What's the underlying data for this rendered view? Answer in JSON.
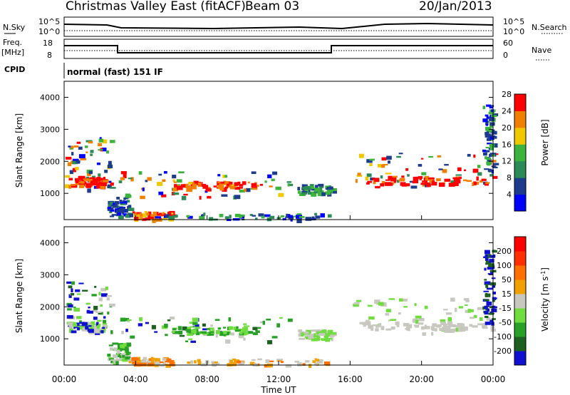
{
  "header": {
    "title": "Christmas Valley East (fitACF)",
    "beam": "Beam 03",
    "date": "20/Jan/2013"
  },
  "top_panels": {
    "nsky_label": "N.Sky",
    "nsearch_label": "N.Search",
    "nsky_ticks": [
      "10^5",
      "10^0"
    ],
    "freq_label": "Freq.",
    "freq_unit": "[MHz]",
    "freq_ticks": [
      "18",
      "8"
    ],
    "nave_label": "Nave",
    "nave_ticks": [
      "60",
      "0"
    ],
    "cpid_label": "CPID",
    "cpid_value": "normal (fast) 151 IF"
  },
  "chart_data": [
    {
      "type": "heatmap",
      "name": "power",
      "ylabel": "Slant Range [km]",
      "ylim": [
        180,
        4500
      ],
      "yticks": [
        "1000",
        "2000",
        "3000",
        "4000"
      ],
      "colorbar_label": "Power [dB]",
      "colorbar_ticks": [
        "4",
        "8",
        "12",
        "16",
        "20",
        "24",
        "28"
      ],
      "colorbar_colors": [
        "#0000ff",
        "#1e3c8c",
        "#2b8a56",
        "#3cb33c",
        "#f0c800",
        "#f08000",
        "#ff0000"
      ]
    },
    {
      "type": "heatmap",
      "name": "velocity",
      "ylabel": "Slant Range [km]",
      "ylim": [
        180,
        4500
      ],
      "yticks": [
        "1000",
        "2000",
        "3000",
        "4000"
      ],
      "colorbar_label": "Velocity [m s",
      "colorbar_label_sup": "-1",
      "colorbar_label_end": "]",
      "colorbar_ticks": [
        "200",
        "100",
        "50",
        "15",
        "-15",
        "-50",
        "-100",
        "-200"
      ],
      "colorbar_colors": [
        "#1010d0",
        "#1e6020",
        "#28a028",
        "#70dc40",
        "#c8c8c0",
        "#f0a000",
        "#ff7000",
        "#ff3000",
        "#ff0000"
      ]
    }
  ],
  "x_axis": {
    "ticks": [
      "00:00",
      "04:00",
      "08:00",
      "12:00",
      "16:00",
      "20:00",
      "00:00"
    ],
    "label": "Time UT"
  }
}
